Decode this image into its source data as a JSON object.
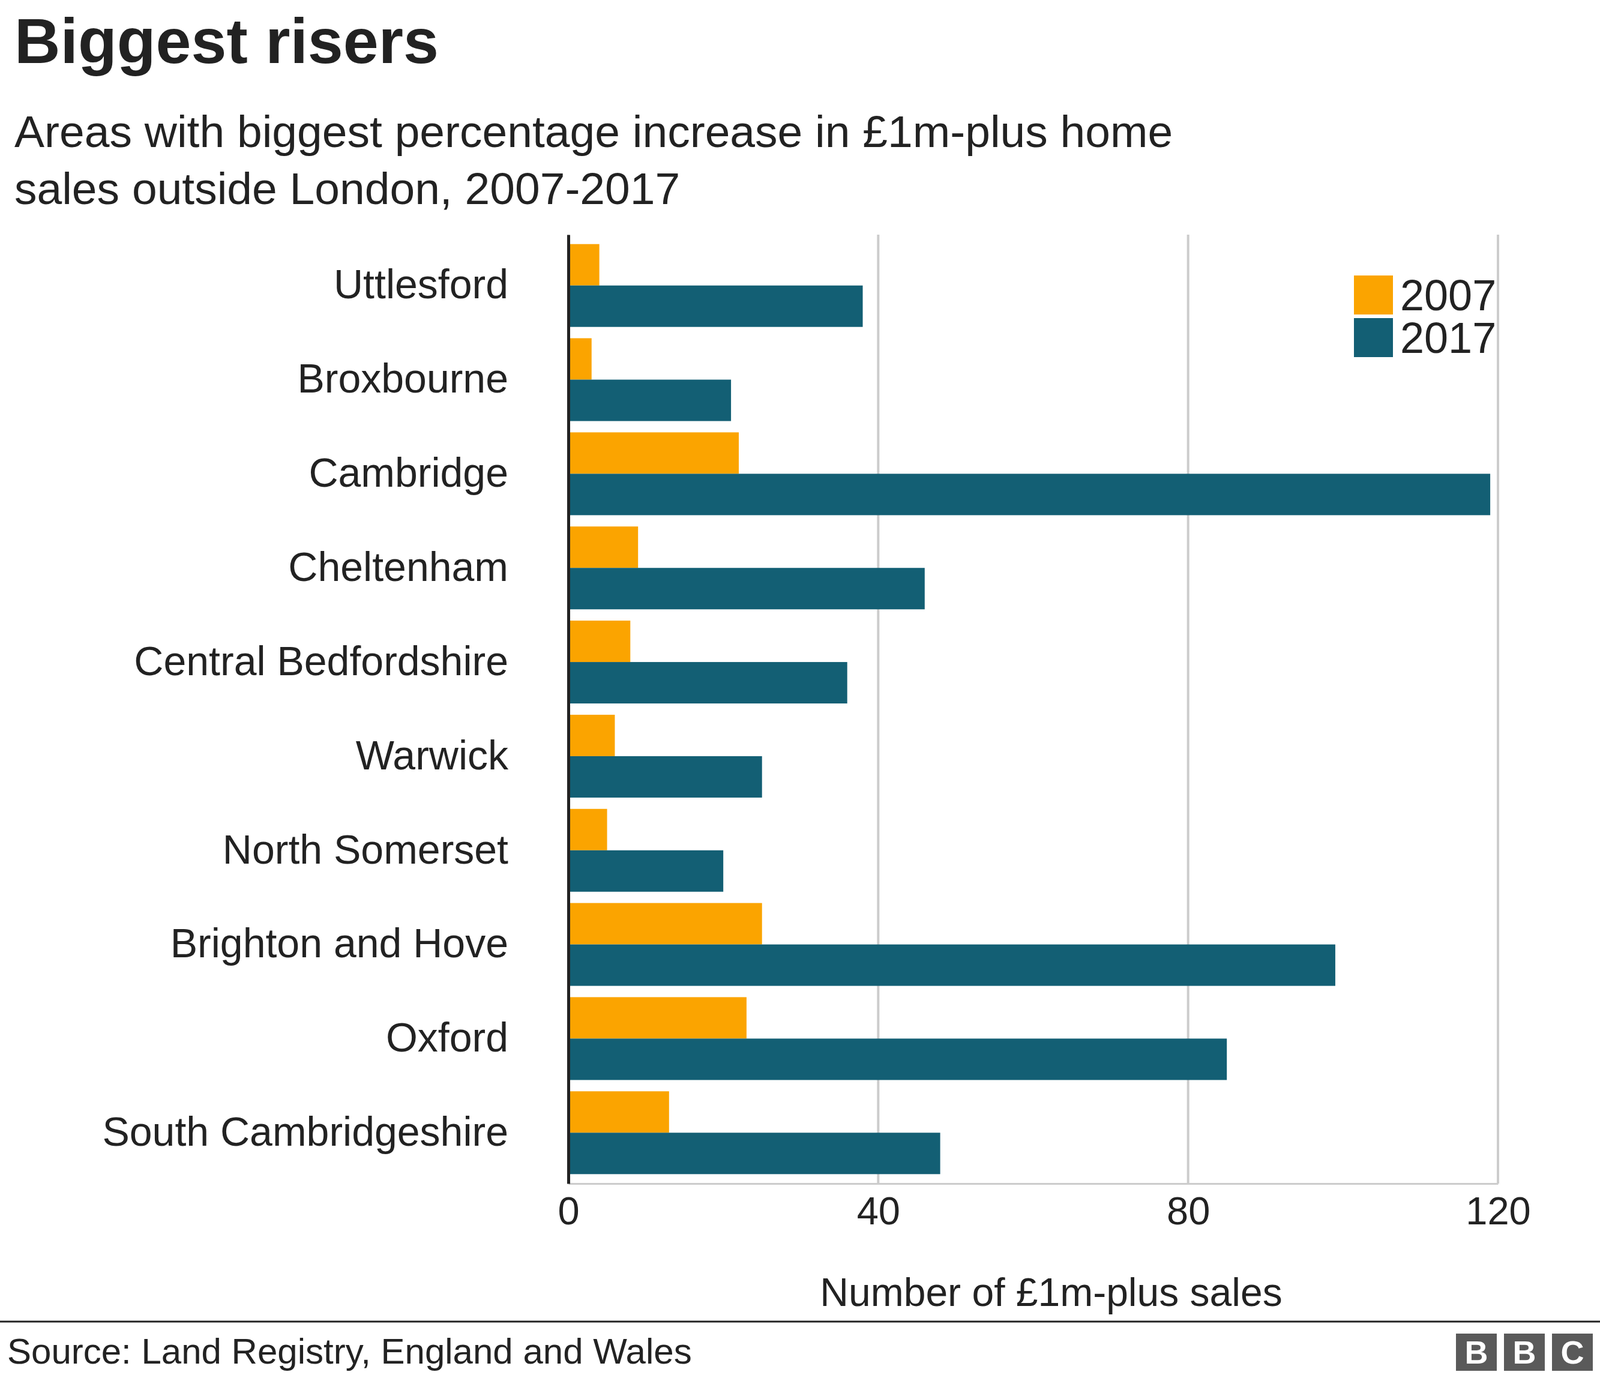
{
  "chart_data": {
    "type": "bar",
    "orientation": "horizontal",
    "title": "Biggest risers",
    "subtitle": [
      "Areas with biggest percentage increase in £1m-plus home",
      "sales outside London, 2007-2017"
    ],
    "x_label": "Number of £1m-plus sales",
    "source": "Source: Land Registry, England and Wales",
    "logo": "BBC",
    "categories": [
      "Uttlesford",
      "Broxbourne",
      "Cambridge",
      "Cheltenham",
      "Central Bedfordshire",
      "Warwick",
      "North Somerset",
      "Brighton and Hove",
      "Oxford",
      "South Cambridgeshire"
    ],
    "series": [
      {
        "name": "2007",
        "color": "#fba400",
        "values": [
          4,
          3,
          22,
          9,
          8,
          6,
          5,
          25,
          23,
          13
        ]
      },
      {
        "name": "2017",
        "color": "#135f74",
        "values": [
          38,
          21,
          119,
          46,
          36,
          25,
          20,
          99,
          85,
          48
        ]
      }
    ],
    "xlim": [
      0,
      120
    ],
    "xticks": [
      0,
      40,
      80,
      120
    ],
    "grid": true,
    "legend": "top-right"
  }
}
